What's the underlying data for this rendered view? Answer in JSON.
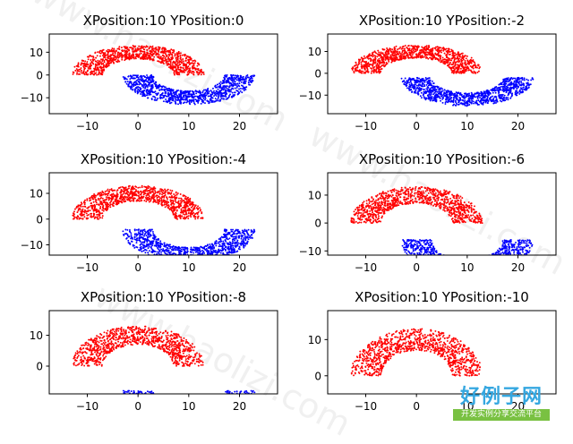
{
  "watermark": {
    "text": "www.haolizi.com"
  },
  "brand": {
    "main": "好例子网",
    "sub": "开发实例分享交流平台"
  },
  "colors": {
    "upper_moon": "#ff0000",
    "lower_moon": "#0000ff"
  },
  "chart_data": [
    {
      "type": "scatter",
      "title": "XPosition:10 YPosition:0",
      "xlim": [
        -17.5,
        27.5
      ],
      "ylim": [
        -17,
        18
      ],
      "xticks": [
        -10,
        0,
        10,
        20
      ],
      "yticks": [
        -10,
        0,
        10
      ],
      "xticklabels": [
        "−10",
        "0",
        "10",
        "20"
      ],
      "yticklabels": [
        "−10",
        "0",
        "10"
      ],
      "series": [
        {
          "color": "#ff0000",
          "shape": "upper half-moon",
          "center": [
            0,
            0
          ],
          "radius": 10,
          "width": 6,
          "points": 1000
        },
        {
          "color": "#0000ff",
          "shape": "lower half-moon",
          "center": [
            10,
            0
          ],
          "radius": 10,
          "width": 6,
          "points": 1000
        }
      ]
    },
    {
      "type": "scatter",
      "title": "XPosition:10 YPosition:-2",
      "xlim": [
        -17.5,
        27.5
      ],
      "ylim": [
        -18.5,
        18
      ],
      "xticks": [
        -10,
        0,
        10,
        20
      ],
      "yticks": [
        -10,
        0,
        10
      ],
      "xticklabels": [
        "−10",
        "0",
        "10",
        "20"
      ],
      "yticklabels": [
        "−10",
        "0",
        "10"
      ],
      "series": [
        {
          "color": "#ff0000",
          "shape": "upper half-moon",
          "center": [
            0,
            0
          ],
          "radius": 10,
          "width": 6,
          "points": 1000
        },
        {
          "color": "#0000ff",
          "shape": "lower half-moon",
          "center": [
            10,
            -2
          ],
          "radius": 10,
          "width": 6,
          "points": 1000
        }
      ]
    },
    {
      "type": "scatter",
      "title": "XPosition:10 YPosition:-4",
      "xlim": [
        -17.5,
        27.5
      ],
      "ylim": [
        -14,
        18
      ],
      "xticks": [
        -10,
        0,
        10,
        20
      ],
      "yticks": [
        -10,
        0,
        10
      ],
      "xticklabels": [
        "−10",
        "0",
        "10",
        "20"
      ],
      "yticklabels": [
        "−10",
        "0",
        "10"
      ],
      "series": [
        {
          "color": "#ff0000",
          "shape": "upper half-moon",
          "center": [
            0,
            0
          ],
          "radius": 10,
          "width": 6,
          "points": 1000
        },
        {
          "color": "#0000ff",
          "shape": "lower half-moon",
          "center": [
            10,
            -4
          ],
          "radius": 10,
          "width": 6,
          "points": 1000
        }
      ]
    },
    {
      "type": "scatter",
      "title": "XPosition:10 YPosition:-6",
      "xlim": [
        -17.5,
        27.5
      ],
      "ylim": [
        -11.5,
        18
      ],
      "xticks": [
        -10,
        0,
        10,
        20
      ],
      "yticks": [
        -10,
        0,
        10
      ],
      "xticklabels": [
        "−10",
        "0",
        "10",
        "20"
      ],
      "yticklabels": [
        "−10",
        "0",
        "10"
      ],
      "series": [
        {
          "color": "#ff0000",
          "shape": "upper half-moon",
          "center": [
            0,
            0
          ],
          "radius": 10,
          "width": 6,
          "points": 1000
        },
        {
          "color": "#0000ff",
          "shape": "lower half-moon",
          "center": [
            10,
            -6
          ],
          "radius": 10,
          "width": 6,
          "points": 1000
        }
      ]
    },
    {
      "type": "scatter",
      "title": "XPosition:10 YPosition:-8",
      "xlim": [
        -17.5,
        27.5
      ],
      "ylim": [
        -9,
        18
      ],
      "xticks": [
        -10,
        0,
        10,
        20
      ],
      "yticks": [
        0,
        10
      ],
      "xticklabels": [
        "−10",
        "0",
        "10",
        "20"
      ],
      "yticklabels": [
        "0",
        "10"
      ],
      "series": [
        {
          "color": "#ff0000",
          "shape": "upper half-moon",
          "center": [
            0,
            0
          ],
          "radius": 10,
          "width": 6,
          "points": 1000
        },
        {
          "color": "#0000ff",
          "shape": "lower half-moon",
          "center": [
            10,
            -8
          ],
          "radius": 10,
          "width": 6,
          "points": 1000
        }
      ]
    },
    {
      "type": "scatter",
      "title": "XPosition:10 YPosition:-10",
      "xlim": [
        -17.5,
        27.5
      ],
      "ylim": [
        -5,
        18
      ],
      "xticks": [
        -10,
        0,
        10,
        20
      ],
      "yticks": [
        0,
        10
      ],
      "xticklabels": [
        "−10",
        "0",
        "10",
        "20"
      ],
      "yticklabels": [
        "0",
        "10"
      ],
      "series": [
        {
          "color": "#ff0000",
          "shape": "upper half-moon",
          "center": [
            0,
            0
          ],
          "radius": 10,
          "width": 6,
          "points": 1000
        },
        {
          "color": "#0000ff",
          "shape": "lower half-moon",
          "center": [
            10,
            -10
          ],
          "radius": 10,
          "width": 6,
          "points": 1000
        }
      ]
    }
  ]
}
